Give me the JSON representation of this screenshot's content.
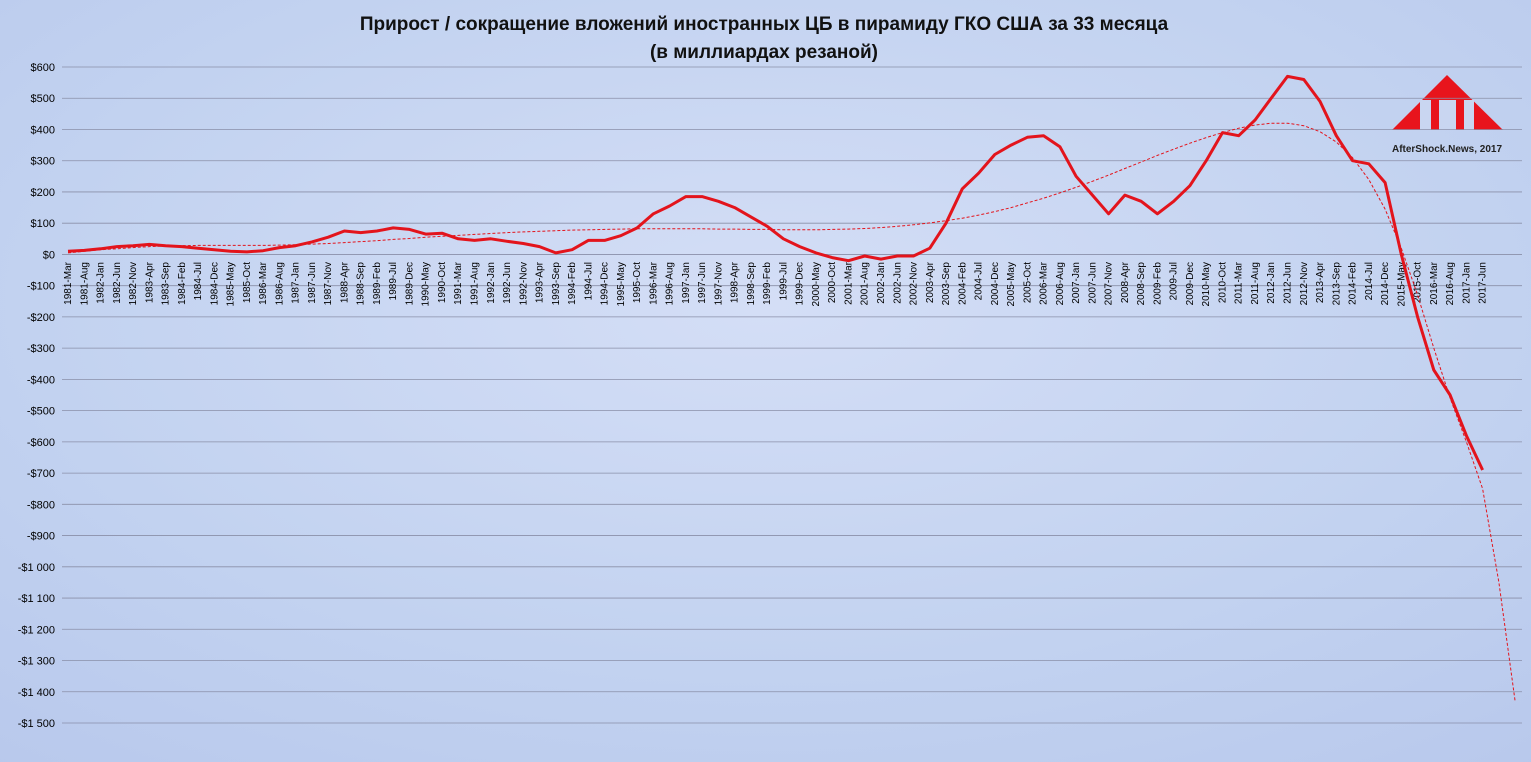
{
  "chart_data": {
    "type": "line",
    "title": "Прирост / сокращение вложений иностранных ЦБ в пирамиду ГКО США за 33 месяца",
    "subtitle": "(в миллиардах резаной)",
    "watermark": "AfterShock.News, 2017",
    "categories": [
      "1981-Mar",
      "1981-Aug",
      "1982-Jan",
      "1982-Jun",
      "1982-Nov",
      "1983-Apr",
      "1983-Sep",
      "1984-Feb",
      "1984-Jul",
      "1984-Dec",
      "1985-May",
      "1985-Oct",
      "1986-Mar",
      "1986-Aug",
      "1987-Jan",
      "1987-Jun",
      "1987-Nov",
      "1988-Apr",
      "1988-Sep",
      "1989-Feb",
      "1989-Jul",
      "1989-Dec",
      "1990-May",
      "1990-Oct",
      "1991-Mar",
      "1991-Aug",
      "1992-Jan",
      "1992-Jun",
      "1992-Nov",
      "1993-Apr",
      "1993-Sep",
      "1994-Feb",
      "1994-Jul",
      "1994-Dec",
      "1995-May",
      "1995-Oct",
      "1996-Mar",
      "1996-Aug",
      "1997-Jan",
      "1997-Jun",
      "1997-Nov",
      "1998-Apr",
      "1998-Sep",
      "1999-Feb",
      "1999-Jul",
      "1999-Dec",
      "2000-May",
      "2000-Oct",
      "2001-Mar",
      "2001-Aug",
      "2002-Jan",
      "2002-Jun",
      "2002-Nov",
      "2003-Apr",
      "2003-Sep",
      "2004-Feb",
      "2004-Jul",
      "2004-Dec",
      "2005-May",
      "2005-Oct",
      "2006-Mar",
      "2006-Aug",
      "2007-Jan",
      "2007-Jun",
      "2007-Nov",
      "2008-Apr",
      "2008-Sep",
      "2009-Feb",
      "2009-Jul",
      "2009-Dec",
      "2010-May",
      "2010-Oct",
      "2011-Mar",
      "2011-Aug",
      "2012-Jan",
      "2012-Jun",
      "2012-Nov",
      "2013-Apr",
      "2013-Sep",
      "2014-Feb",
      "2014-Jul",
      "2014-Dec",
      "2015-May",
      "2015-Oct",
      "2016-Mar",
      "2016-Aug",
      "2017-Jan",
      "2017-Jun",
      null,
      null
    ],
    "series": [
      {
        "color": "#e3141c",
        "style": "solid",
        "values": [
          10,
          13,
          18,
          25,
          28,
          32,
          28,
          25,
          20,
          15,
          10,
          8,
          12,
          22,
          28,
          40,
          55,
          75,
          70,
          75,
          85,
          80,
          65,
          68,
          50,
          45,
          50,
          42,
          35,
          25,
          5,
          15,
          45,
          45,
          60,
          85,
          130,
          155,
          185,
          185,
          170,
          150,
          120,
          90,
          50,
          25,
          5,
          -10,
          -20,
          -5,
          -15,
          -5,
          -5,
          20,
          100,
          210,
          260,
          320,
          350,
          375,
          380,
          345,
          250,
          190,
          130,
          190,
          170,
          130,
          170,
          220,
          300,
          390,
          380,
          430,
          500,
          570,
          560,
          490,
          380,
          300,
          290,
          230,
          0,
          -200,
          -370,
          -450,
          -580,
          -690,
          null,
          null
        ]
      },
      {
        "color": "#e3141c",
        "style": "dashed",
        "values": [
          5,
          10,
          15,
          18,
          22,
          25,
          27,
          28,
          29,
          29,
          29,
          29,
          29,
          30,
          31,
          33,
          35,
          38,
          41,
          44,
          48,
          51,
          55,
          58,
          61,
          64,
          67,
          70,
          72,
          74,
          76,
          78,
          79,
          80,
          81,
          82,
          82,
          82,
          82,
          82,
          81,
          81,
          80,
          80,
          79,
          79,
          79,
          80,
          81,
          83,
          86,
          90,
          95,
          101,
          108,
          116,
          126,
          137,
          150,
          165,
          180,
          197,
          215,
          234,
          254,
          275,
          296,
          317,
          337,
          356,
          374,
          390,
          404,
          414,
          420,
          420,
          412,
          393,
          360,
          310,
          240,
          145,
          20,
          -130,
          -300,
          -460,
          -600,
          -750,
          -1050,
          -1430
        ]
      }
    ],
    "ylim": [
      -1500,
      600
    ],
    "yticks": [
      {
        "value": 600,
        "label": "$600"
      },
      {
        "value": 500,
        "label": "$500"
      },
      {
        "value": 400,
        "label": "$400"
      },
      {
        "value": 300,
        "label": "$300"
      },
      {
        "value": 200,
        "label": "$200"
      },
      {
        "value": 100,
        "label": "$100"
      },
      {
        "value": 0,
        "label": "$0"
      },
      {
        "value": -100,
        "label": "-$100"
      },
      {
        "value": -200,
        "label": "-$200"
      },
      {
        "value": -300,
        "label": "-$300"
      },
      {
        "value": -400,
        "label": "-$400"
      },
      {
        "value": -500,
        "label": "-$500"
      },
      {
        "value": -600,
        "label": "-$600"
      },
      {
        "value": -700,
        "label": "-$700"
      },
      {
        "value": -800,
        "label": "-$800"
      },
      {
        "value": -900,
        "label": "-$900"
      },
      {
        "value": -1000,
        "label": "-$1 000"
      },
      {
        "value": -1100,
        "label": "-$1 100"
      },
      {
        "value": -1200,
        "label": "-$1 200"
      },
      {
        "value": -1300,
        "label": "-$1 300"
      },
      {
        "value": -1400,
        "label": "-$1 400"
      },
      {
        "value": -1500,
        "label": "-$1 500"
      }
    ],
    "grid": true
  }
}
